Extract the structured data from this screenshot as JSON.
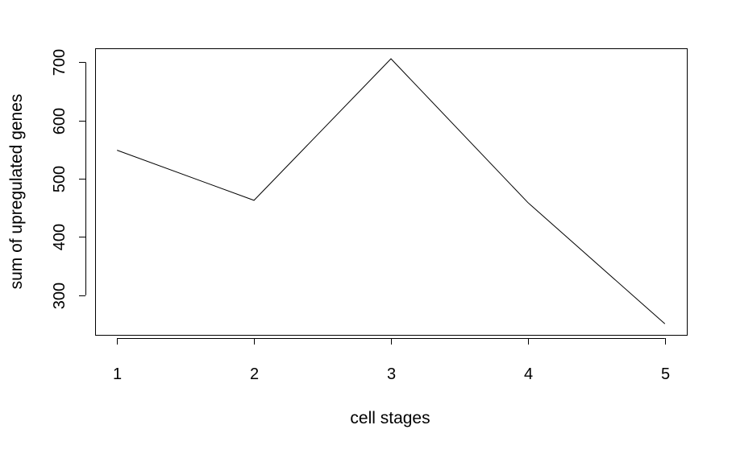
{
  "chart_data": {
    "type": "line",
    "title": "",
    "xlabel": "cell stages",
    "ylabel": "sum of upregulated genes",
    "x": [
      1,
      2,
      3,
      4,
      5
    ],
    "y": [
      549,
      463,
      706,
      459,
      251
    ],
    "xticks": [
      1,
      2,
      3,
      4,
      5
    ],
    "yticks": [
      300,
      400,
      500,
      600,
      700
    ],
    "xlim": [
      0.84,
      5.16
    ],
    "ylim": [
      232,
      724
    ],
    "grid": false,
    "legend": "none",
    "line_color": "#000000"
  }
}
